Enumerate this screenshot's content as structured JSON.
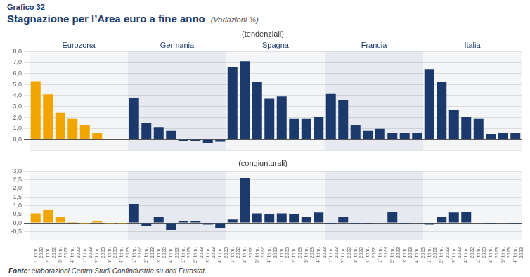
{
  "chart_data": [
    {
      "type": "bar",
      "title": "Grafico 32\nStagnazione per l’Area euro a fine anno",
      "subtitle": "(Variazioni %)",
      "annotations": [
        "(tendenziali)"
      ],
      "categories": [
        "1° trim.\n2022",
        "2° trim.\n2022",
        "3° trim.\n2022",
        "4° trim.\n2022",
        "1° trim.\n2023",
        "2° trim.\n2023",
        "3° trim.\n2023",
        "4° trim.\n2023"
      ],
      "series": [
        {
          "name": "Eurozona",
          "color": "#F0A500",
          "values": [
            5.3,
            4.1,
            2.4,
            1.9,
            1.3,
            0.6,
            0.05,
            0.0
          ]
        },
        {
          "name": "Germania",
          "color": "#1B3A6B",
          "values": [
            3.8,
            1.5,
            1.1,
            0.8,
            -0.1,
            -0.1,
            -0.3,
            -0.2
          ]
        },
        {
          "name": "Spagna",
          "color": "#1B3A6B",
          "values": [
            6.6,
            7.1,
            5.2,
            3.7,
            3.9,
            1.9,
            1.9,
            2.0
          ]
        },
        {
          "name": "Francia",
          "color": "#1B3A6B",
          "values": [
            4.2,
            3.6,
            1.3,
            0.8,
            1.0,
            0.6,
            0.6,
            0.6
          ]
        },
        {
          "name": "Italia",
          "color": "#1B3A6B",
          "values": [
            6.4,
            5.2,
            2.7,
            2.0,
            1.9,
            0.5,
            0.6,
            0.6
          ]
        }
      ],
      "ylim": [
        -1.0,
        8.0
      ],
      "yticks": [
        {
          "value": 0.0,
          "label": "0,0"
        },
        {
          "value": 1.0,
          "label": "1,0"
        },
        {
          "value": 2.0,
          "label": "2,0"
        },
        {
          "value": 3.0,
          "label": "3,0"
        },
        {
          "value": 4.0,
          "label": "4,0"
        },
        {
          "value": 5.0,
          "label": "5,0"
        },
        {
          "value": 6.0,
          "label": "6,0"
        },
        {
          "value": 7.0,
          "label": "7,0"
        },
        {
          "value": 8.0,
          "label": "8,0"
        }
      ],
      "grid": true,
      "tick_labels": "y"
    },
    {
      "type": "bar",
      "annotations": [
        "(congiunturali)",
        "Fonte: elaborazioni Centro Studi Confindustria su dati Eurostat."
      ],
      "categories": [
        "1° trim.\n2022",
        "2° trim.\n2022",
        "3° trim.\n2022",
        "4° trim.\n2022",
        "1° trim.\n2023",
        "2° trim.\n2023",
        "3° trim.\n2023",
        "4° trim.\n2023"
      ],
      "series": [
        {
          "name": "Eurozona",
          "color": "#F0A500",
          "values": [
            0.55,
            0.75,
            0.35,
            0.05,
            -0.05,
            0.1,
            -0.05,
            -0.05
          ]
        },
        {
          "name": "Germania",
          "color": "#1B3A6B",
          "values": [
            1.1,
            -0.2,
            0.35,
            -0.4,
            0.1,
            0.1,
            -0.1,
            -0.3
          ]
        },
        {
          "name": "Spagna",
          "color": "#1B3A6B",
          "values": [
            0.2,
            2.6,
            0.55,
            0.5,
            0.55,
            0.5,
            0.35,
            0.6
          ]
        },
        {
          "name": "Francia",
          "color": "#1B3A6B",
          "values": [
            -0.05,
            0.35,
            -0.05,
            -0.05,
            0.0,
            0.65,
            -0.05,
            0.0
          ]
        },
        {
          "name": "Italia",
          "color": "#1B3A6B",
          "values": [
            -0.1,
            0.35,
            0.6,
            0.65,
            0.0,
            -0.05,
            0.0,
            -0.05
          ]
        }
      ],
      "ylim": [
        -1.0,
        3.0
      ],
      "yticks": [
        {
          "value": -0.5,
          "label": "-0,5"
        },
        {
          "value": 0.0,
          "label": "0,0"
        },
        {
          "value": 0.5,
          "label": "0,5"
        },
        {
          "value": 1.0,
          "label": "1,0"
        },
        {
          "value": 1.5,
          "label": "1,5"
        },
        {
          "value": 2.0,
          "label": "2,0"
        },
        {
          "value": 2.5,
          "label": "2,5"
        },
        {
          "value": 3.0,
          "label": "3,0"
        }
      ],
      "grid": true
    }
  ]
}
